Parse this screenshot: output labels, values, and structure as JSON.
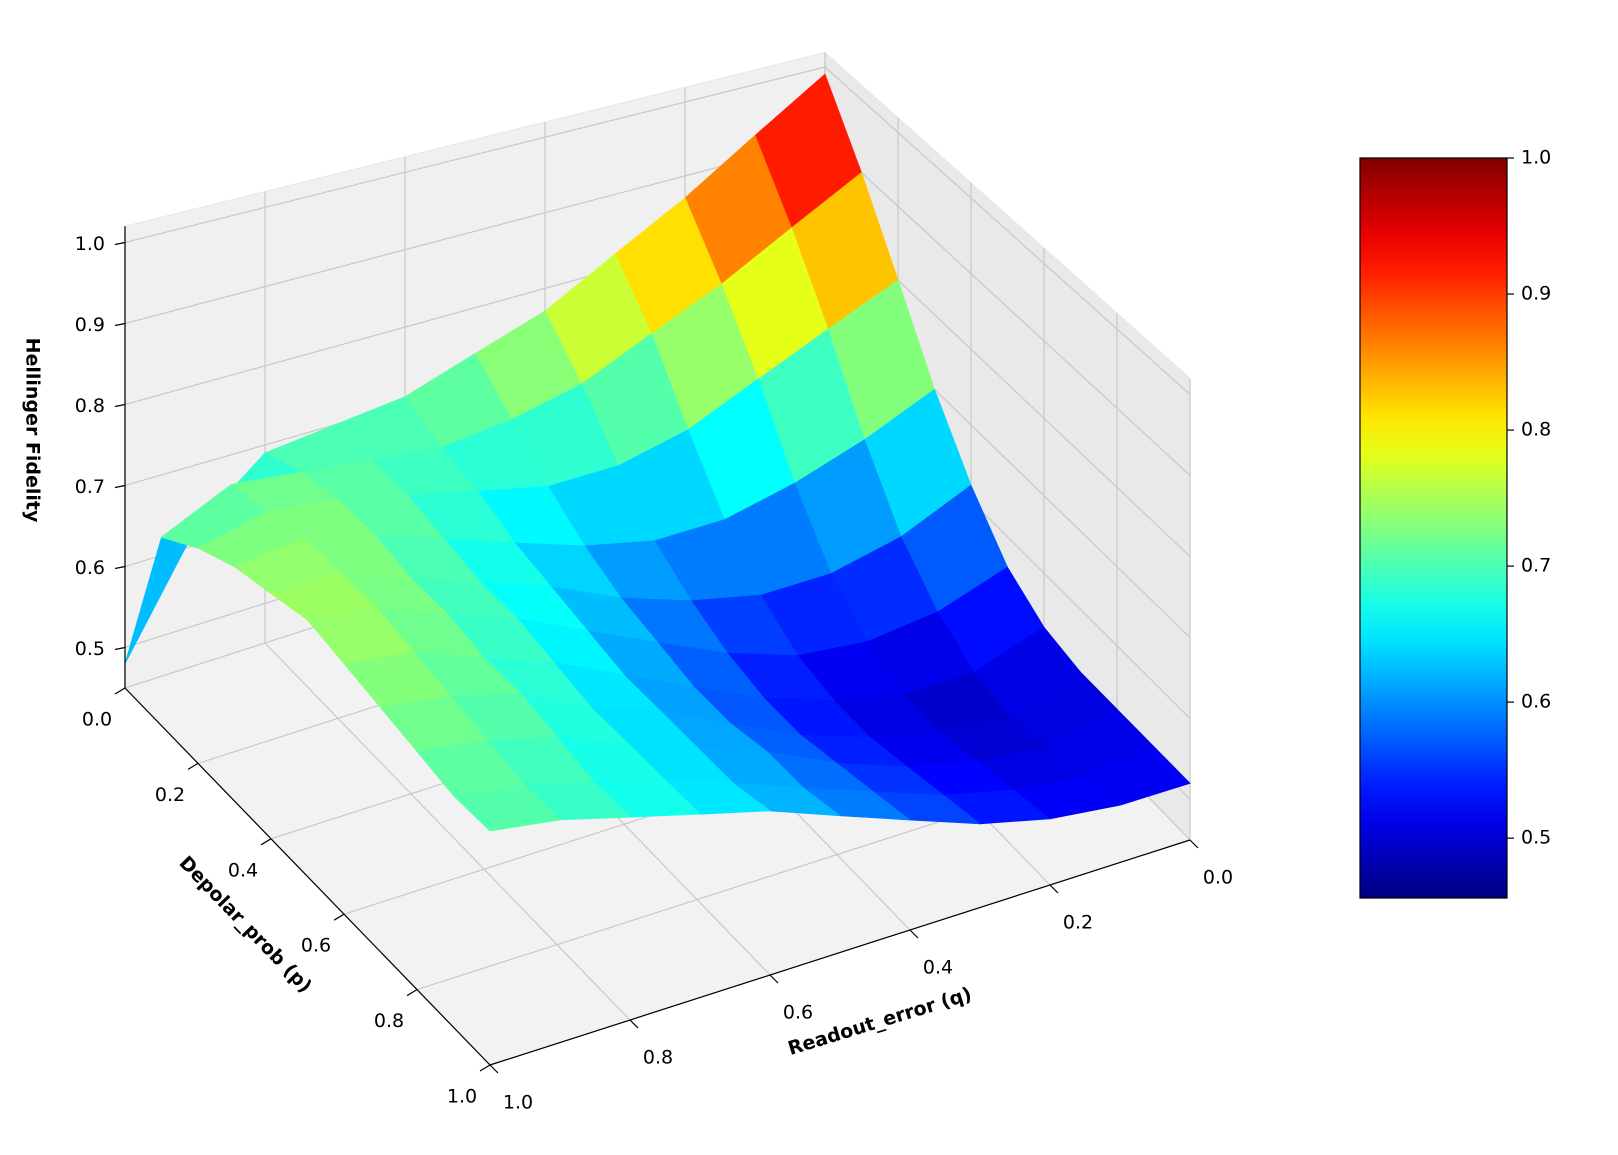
{
  "chart_data": {
    "type": "surface3d",
    "colormap": "jet",
    "xlabel": "Readout_error (q)",
    "ylabel": "Depolar_prob (p)",
    "zlabel": "Hellinger Fidelity",
    "x": [
      0,
      0.1,
      0.2,
      0.3,
      0.4,
      0.5,
      0.6,
      0.7,
      0.8,
      0.9,
      1.0
    ],
    "y": [
      0,
      0.1,
      0.2,
      0.3,
      0.4,
      0.5,
      0.6,
      0.7,
      0.8,
      0.9,
      1.0
    ],
    "z": [
      [
        0.99,
        0.93,
        0.87,
        0.82,
        0.77,
        0.74,
        0.71,
        0.7,
        0.69,
        0.62,
        0.48
      ],
      [
        0.9,
        0.85,
        0.8,
        0.76,
        0.72,
        0.7,
        0.69,
        0.7,
        0.71,
        0.72,
        0.68
      ],
      [
        0.8,
        0.76,
        0.72,
        0.68,
        0.66,
        0.66,
        0.68,
        0.7,
        0.72,
        0.73,
        0.71
      ],
      [
        0.7,
        0.66,
        0.63,
        0.61,
        0.61,
        0.63,
        0.66,
        0.69,
        0.72,
        0.74,
        0.73
      ],
      [
        0.62,
        0.58,
        0.56,
        0.56,
        0.58,
        0.61,
        0.65,
        0.68,
        0.71,
        0.74,
        0.74
      ],
      [
        0.56,
        0.53,
        0.52,
        0.53,
        0.56,
        0.6,
        0.64,
        0.68,
        0.71,
        0.74,
        0.75
      ],
      [
        0.53,
        0.5,
        0.5,
        0.52,
        0.55,
        0.59,
        0.63,
        0.67,
        0.7,
        0.73,
        0.74
      ],
      [
        0.52,
        0.49,
        0.5,
        0.52,
        0.55,
        0.59,
        0.63,
        0.66,
        0.7,
        0.72,
        0.73
      ],
      [
        0.52,
        0.5,
        0.51,
        0.53,
        0.56,
        0.6,
        0.63,
        0.66,
        0.69,
        0.71,
        0.72
      ],
      [
        0.52,
        0.51,
        0.52,
        0.54,
        0.57,
        0.6,
        0.63,
        0.66,
        0.68,
        0.7,
        0.71
      ],
      [
        0.52,
        0.52,
        0.53,
        0.55,
        0.58,
        0.61,
        0.64,
        0.66,
        0.68,
        0.7,
        0.71
      ]
    ],
    "xlim": [
      0,
      1
    ],
    "ylim": [
      0,
      1
    ],
    "zlim": [
      0.45,
      1.02
    ],
    "xticks": [
      {
        "value": 0,
        "label": "0.0"
      },
      {
        "value": 0.2,
        "label": "0.2"
      },
      {
        "value": 0.4,
        "label": "0.4"
      },
      {
        "value": 0.6,
        "label": "0.6"
      },
      {
        "value": 0.8,
        "label": "0.8"
      },
      {
        "value": 1.0,
        "label": "1.0"
      }
    ],
    "yticks": [
      {
        "value": 0,
        "label": "0.0"
      },
      {
        "value": 0.2,
        "label": "0.2"
      },
      {
        "value": 0.4,
        "label": "0.4"
      },
      {
        "value": 0.6,
        "label": "0.6"
      },
      {
        "value": 0.8,
        "label": "0.8"
      },
      {
        "value": 1.0,
        "label": "1.0"
      }
    ],
    "zticks": [
      {
        "value": 0.5,
        "label": "0.5"
      },
      {
        "value": 0.6,
        "label": "0.6"
      },
      {
        "value": 0.7,
        "label": "0.7"
      },
      {
        "value": 0.8,
        "label": "0.8"
      },
      {
        "value": 0.9,
        "label": "0.9"
      },
      {
        "value": 1.0,
        "label": "1.0"
      }
    ],
    "clim": [
      0.456,
      1.0
    ],
    "colorbar_ticks": [
      {
        "value": 0.5,
        "label": "0.5"
      },
      {
        "value": 0.6,
        "label": "0.6"
      },
      {
        "value": 0.7,
        "label": "0.7"
      },
      {
        "value": 0.8,
        "label": "0.8"
      },
      {
        "value": 0.9,
        "label": "0.9"
      },
      {
        "value": 1.0,
        "label": "1.0"
      }
    ],
    "grid": true
  }
}
